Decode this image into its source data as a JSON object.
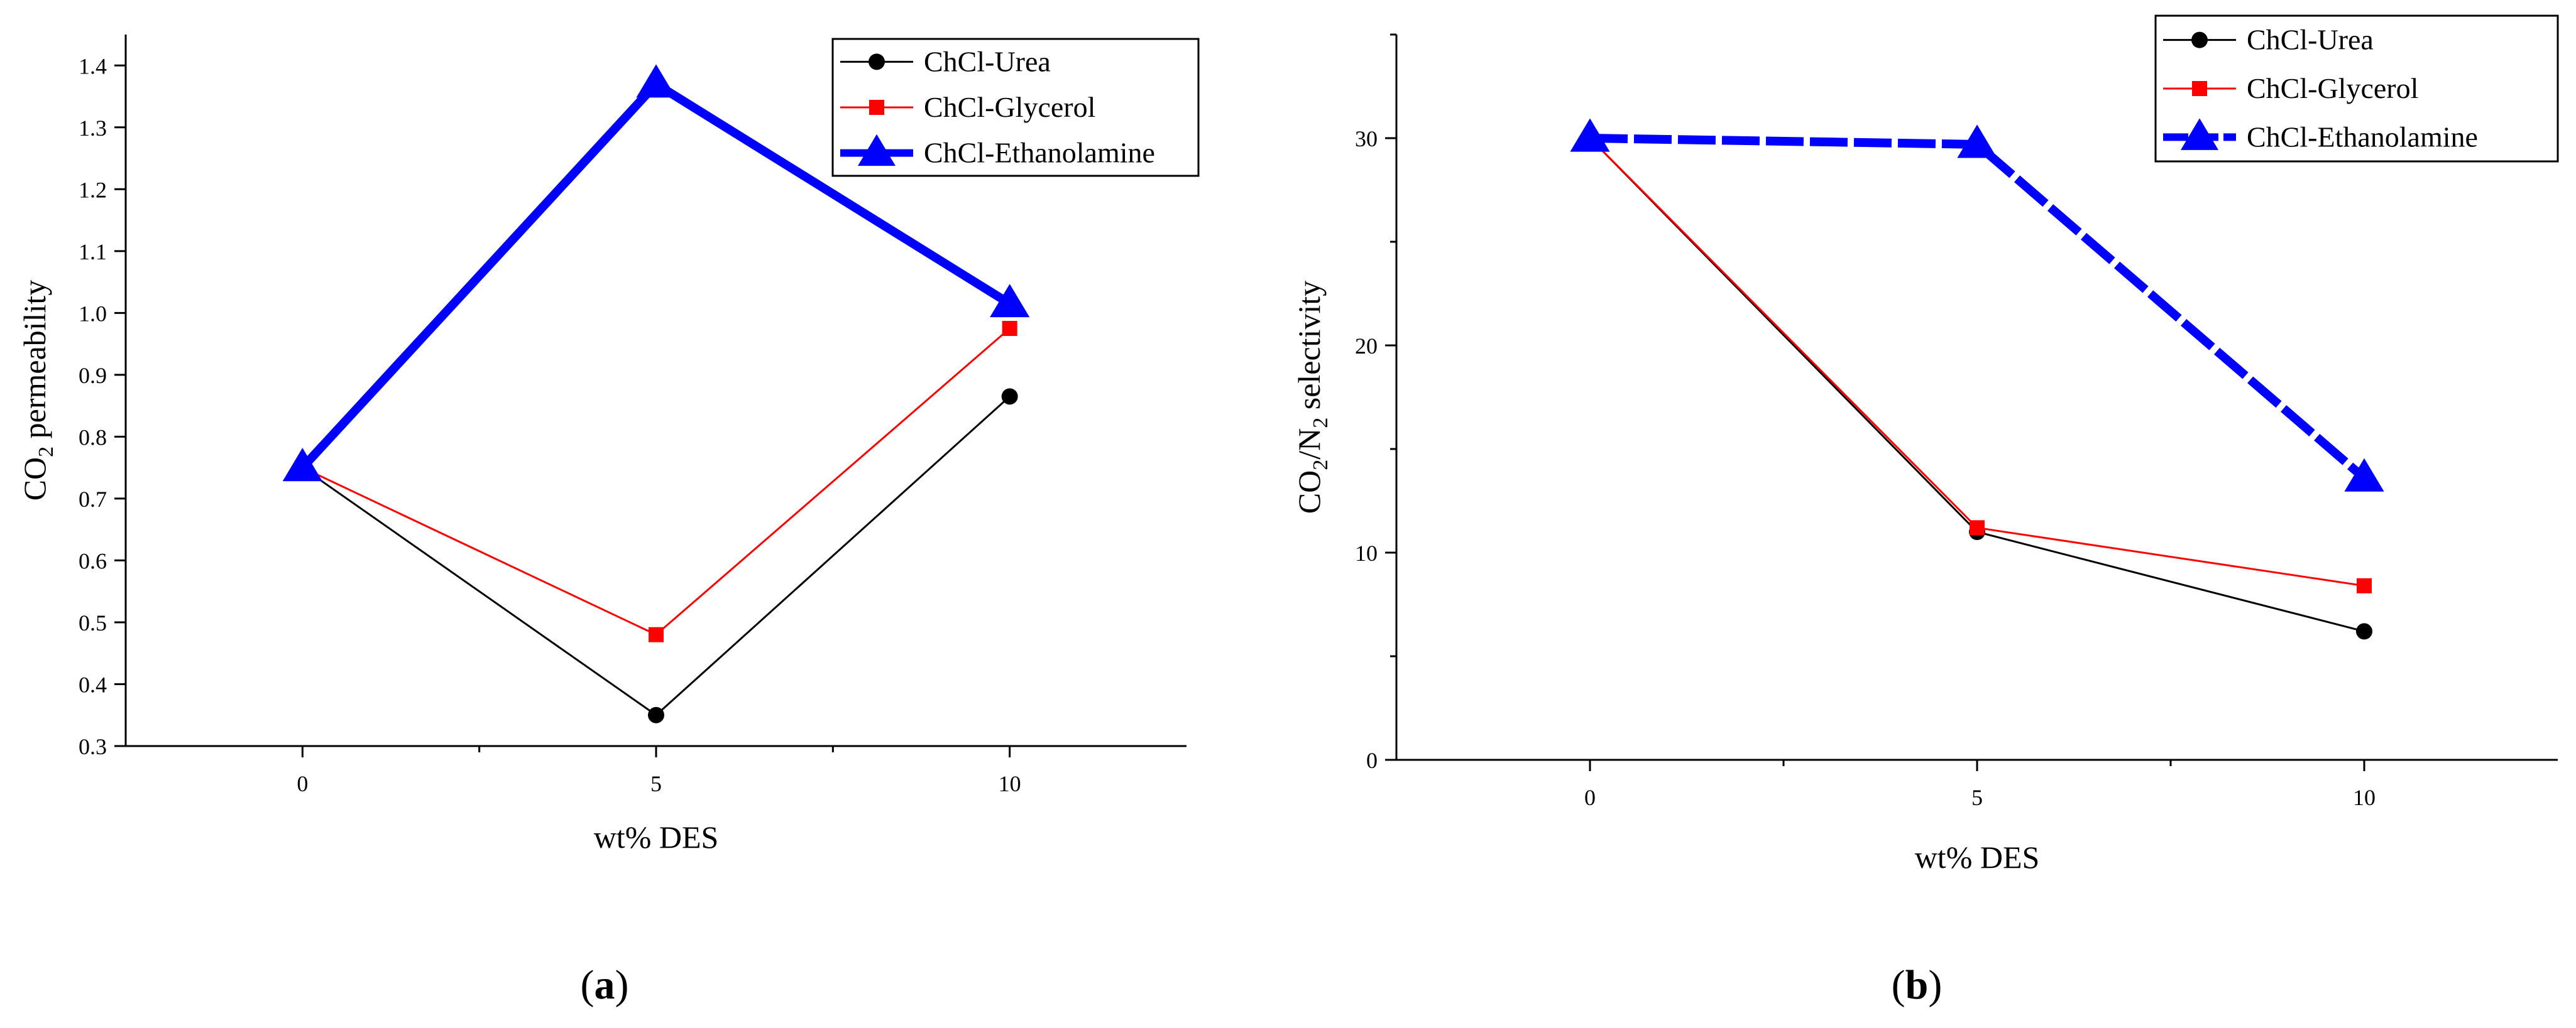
{
  "chart_data": [
    {
      "type": "line",
      "panel_label": "a",
      "x": [
        0,
        5,
        10
      ],
      "xlabel": "wt% DES",
      "ylabel": {
        "pre": "CO",
        "sub1": "2",
        "mid": " permeability",
        "sub2": "",
        "post": ""
      },
      "xlim": [
        -2.5,
        12.5
      ],
      "ylim": [
        0.3,
        1.45
      ],
      "x_ticks": [
        0,
        5,
        10
      ],
      "x_minor_ticks": [
        2.5,
        7.5
      ],
      "y_ticks": [
        0.3,
        0.4,
        0.5,
        0.6,
        0.7,
        0.8,
        0.9,
        1.0,
        1.1,
        1.2,
        1.3,
        1.4
      ],
      "y_tick_labels": [
        "0.3",
        "0.4",
        "0.5",
        "0.6",
        "0.7",
        "0.8",
        "0.9",
        "1.0",
        "1.1",
        "1.2",
        "1.3",
        "1.4"
      ],
      "legend_position": "top-right",
      "series": [
        {
          "name": "ChCl-Urea",
          "values": [
            0.75,
            0.35,
            0.865
          ],
          "color": "#000000",
          "marker": "circle",
          "line_style": "solid",
          "line": "thin"
        },
        {
          "name": "ChCl-Glycerol",
          "values": [
            0.75,
            0.48,
            0.975
          ],
          "color": "#ff0000",
          "marker": "square",
          "line_style": "solid",
          "line": "thin"
        },
        {
          "name": "ChCl-Ethanolamine",
          "values": [
            0.75,
            1.37,
            1.015
          ],
          "color": "#0000ff",
          "marker": "triangle",
          "line_style": "solid",
          "line": "thick"
        }
      ]
    },
    {
      "type": "line",
      "panel_label": "b",
      "x": [
        0,
        5,
        10
      ],
      "xlabel": "wt% DES",
      "ylabel": {
        "pre": "CO",
        "sub1": "2",
        "mid": "/N",
        "sub2": "2",
        "post": " selectivity"
      },
      "xlim": [
        -2.5,
        12.5
      ],
      "ylim": [
        0,
        35
      ],
      "x_ticks": [
        0,
        5,
        10
      ],
      "x_minor_ticks": [
        2.5,
        7.5
      ],
      "y_ticks": [
        0,
        10,
        20,
        30
      ],
      "y_tick_labels": [
        "0",
        "10",
        "20",
        "30"
      ],
      "y_minor_ticks": [
        5,
        15,
        25,
        35
      ],
      "legend_position": "top-right",
      "series": [
        {
          "name": "ChCl-Urea",
          "values": [
            30,
            11,
            6.2
          ],
          "color": "#000000",
          "marker": "circle",
          "line_style": "solid",
          "line": "thin"
        },
        {
          "name": "ChCl-Glycerol",
          "values": [
            30,
            11.2,
            8.4
          ],
          "color": "#ff0000",
          "marker": "square",
          "line_style": "solid",
          "line": "thin"
        },
        {
          "name": "ChCl-Ethanolamine",
          "values": [
            30,
            29.7,
            13.6
          ],
          "color": "#0000ff",
          "marker": "triangle",
          "line_style": "dashed",
          "line": "thick"
        }
      ]
    }
  ]
}
